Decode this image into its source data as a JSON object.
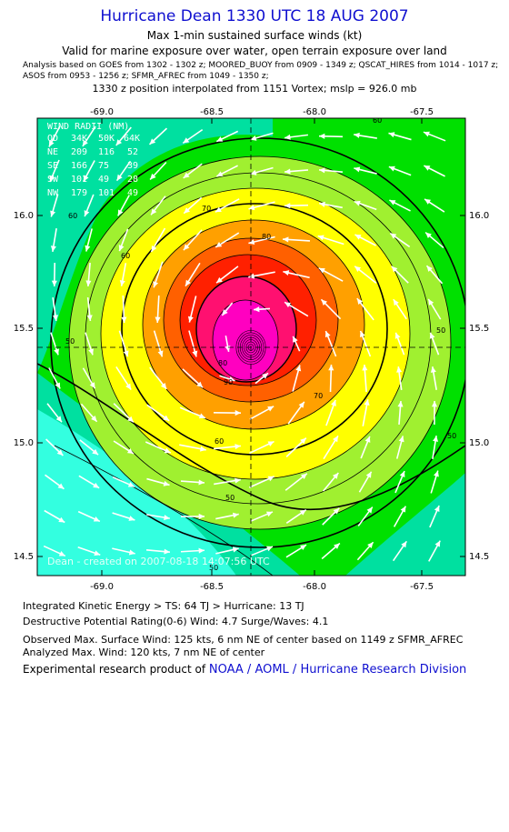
{
  "header": {
    "title": "Hurricane Dean 1330 UTC 18 AUG 2007",
    "subtitle": "Max 1-min sustained surface winds (kt)",
    "valid_note": "Valid for marine exposure over water, open terrain exposure over land",
    "analysis_line1": "Analysis based on  GOES from 1302 - 1302 z;  MOORED_BUOY from 0909 - 1349 z;  QSCAT_HIRES from 1014 - 1017 z;",
    "analysis_line2": "ASOS from 0953 - 1256 z;   SFMR_AFREC from 1049 - 1350 z;",
    "position_note": "1330 z position interpolated from 1151 Vortex; mslp = 926.0 mb"
  },
  "map": {
    "lon_ticks": [
      "-69.0",
      "-68.5",
      "-68.0",
      "-67.5"
    ],
    "lat_ticks": [
      "16.0",
      "15.5",
      "15.0",
      "14.5"
    ],
    "center": {
      "lon": -68.28,
      "lat": 15.42
    },
    "credit": "Dean - created on 2007-08-18 14:07:56 UTC",
    "contour_labels": [
      "60",
      "50",
      "60",
      "70",
      "80",
      "70",
      "60",
      "50",
      "80",
      "90",
      "60",
      "50",
      "50",
      "50"
    ],
    "wind_radii": {
      "title": "WIND RADII (NM)",
      "header": [
        "QD",
        "34K",
        "50K",
        "64K"
      ],
      "rows": [
        [
          "NE",
          "209",
          "116",
          "52"
        ],
        [
          "SE",
          "166",
          "75",
          "39"
        ],
        [
          "SW",
          "101",
          "49",
          "28"
        ],
        [
          "NW",
          "179",
          "101",
          "49"
        ]
      ]
    },
    "colors": {
      "lt35": "#33ffe0",
      "35_50": "#00e0a0",
      "50_64": "#00e000",
      "64_70": "#a0f030",
      "70_80": "#ffff00",
      "80_90": "#ffa000",
      "90_100": "#ff6000",
      "100_110": "#ff2000",
      "110_120": "#ff1070",
      "gt120": "#ff00c0"
    }
  },
  "footer": {
    "ike": "Integrated Kinetic Energy > TS: 64 TJ   > Hurricane: 13 TJ",
    "dpr": "Destructive Potential Rating(0-6)   Wind: 4.7 Surge/Waves: 4.1",
    "observed": "Observed Max. Surface Wind: 125 kts, 6 nm NE of center based on 1149 z SFMR_AFREC",
    "analyzed": "Analyzed Max. Wind: 120 kts, 7 nm NE of center",
    "credit_prefix": "Experimental research product of ",
    "credit_link": "NOAA / AOML / Hurricane Research Division"
  }
}
